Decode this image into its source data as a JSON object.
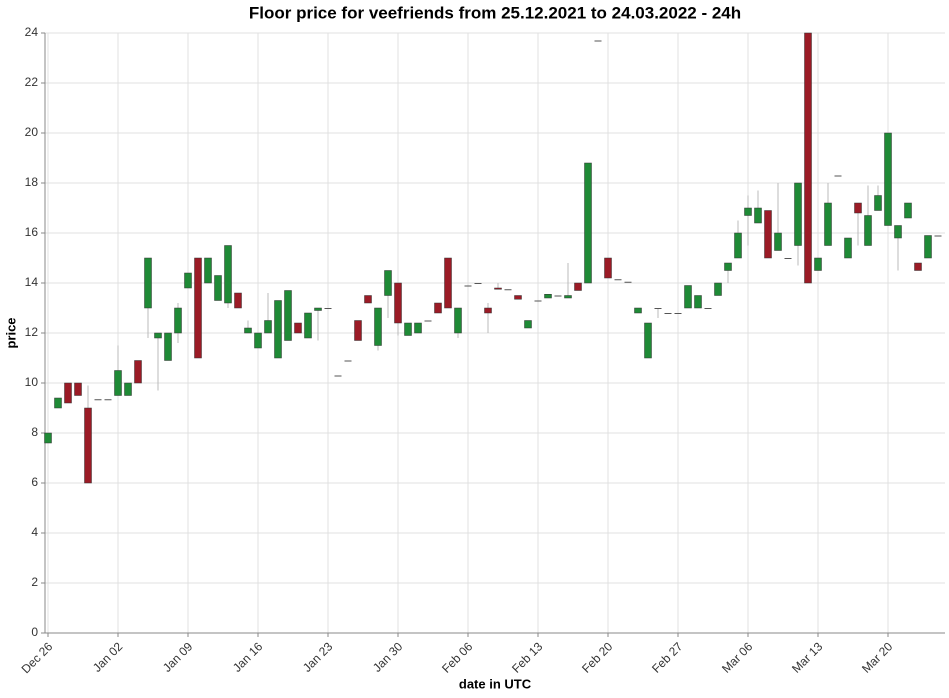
{
  "chart_data": {
    "type": "candlestick",
    "title": "Floor price for veefriends from 25.12.2021 to 24.03.2022  - 24h",
    "x_label": "date in UTC",
    "y_label": "price",
    "ylim": [
      0,
      24
    ],
    "yticks": [
      0,
      2,
      4,
      6,
      8,
      10,
      12,
      14,
      16,
      18,
      20,
      22,
      24
    ],
    "grid": true,
    "up_color": "#1f8a36",
    "down_color": "#9b1b26",
    "flat_color": "#555555",
    "wick_color": "#bbbbbb",
    "x": [
      "Dec 26",
      "Dec 27",
      "Dec 28",
      "Dec 29",
      "Dec 30",
      "Dec 31",
      "Jan 01",
      "Jan 02",
      "Jan 03",
      "Jan 04",
      "Jan 05",
      "Jan 06",
      "Jan 07",
      "Jan 08",
      "Jan 09",
      "Jan 10",
      "Jan 11",
      "Jan 12",
      "Jan 13",
      "Jan 14",
      "Jan 15",
      "Jan 16",
      "Jan 17",
      "Jan 18",
      "Jan 19",
      "Jan 20",
      "Jan 21",
      "Jan 22",
      "Jan 23",
      "Jan 24",
      "Jan 25",
      "Jan 26",
      "Jan 27",
      "Jan 28",
      "Jan 29",
      "Jan 30",
      "Jan 31",
      "Feb 01",
      "Feb 02",
      "Feb 03",
      "Feb 04",
      "Feb 05",
      "Feb 06",
      "Feb 07",
      "Feb 08",
      "Feb 09",
      "Feb 10",
      "Feb 11",
      "Feb 12",
      "Feb 13",
      "Feb 14",
      "Feb 15",
      "Feb 16",
      "Feb 17",
      "Feb 18",
      "Feb 19",
      "Feb 20",
      "Feb 21",
      "Feb 22",
      "Feb 23",
      "Feb 24",
      "Feb 25",
      "Feb 26",
      "Feb 27",
      "Feb 28",
      "Mar 01",
      "Mar 02",
      "Mar 03",
      "Mar 04",
      "Mar 05",
      "Mar 06",
      "Mar 07",
      "Mar 08",
      "Mar 09",
      "Mar 10",
      "Mar 11",
      "Mar 12",
      "Mar 13",
      "Mar 14",
      "Mar 15",
      "Mar 16",
      "Mar 17",
      "Mar 18",
      "Mar 19",
      "Mar 20",
      "Mar 21",
      "Mar 22",
      "Mar 23",
      "Mar 24",
      "Mar 25"
    ],
    "xticks": [
      "Dec 26",
      "Jan 02",
      "Jan 09",
      "Jan 16",
      "Jan 23",
      "Jan 30",
      "Feb 06",
      "Feb 13",
      "Feb 20",
      "Feb 27",
      "Mar 06",
      "Mar 13",
      "Mar 20"
    ],
    "open": [
      7.6,
      9.0,
      10.0,
      10.0,
      9.0,
      9.35,
      9.35,
      9.5,
      9.5,
      10.9,
      13.0,
      11.8,
      10.9,
      12.0,
      13.8,
      15.0,
      14.0,
      13.3,
      13.2,
      13.6,
      12.0,
      11.4,
      12.0,
      11.0,
      11.7,
      12.4,
      11.8,
      12.9,
      13.0,
      10.3,
      10.9,
      12.5,
      13.5,
      11.5,
      13.5,
      14.0,
      11.9,
      12.0,
      12.5,
      13.2,
      15.0,
      12.0,
      13.9,
      14.0,
      13.0,
      13.8,
      13.75,
      13.5,
      12.2,
      13.3,
      13.4,
      13.5,
      13.4,
      14.0,
      14.0,
      23.7,
      15.0,
      14.15,
      14.05,
      12.8,
      11.0,
      13.0,
      12.8,
      12.8,
      13.0,
      13.0,
      13.0,
      13.5,
      14.5,
      15.0,
      16.7,
      16.4,
      16.9,
      15.3,
      15.0,
      15.5,
      24.0,
      14.5,
      15.5,
      18.3,
      15.0,
      17.2,
      15.5,
      16.9,
      16.3,
      15.8,
      16.6,
      14.8,
      15.0,
      15.9
    ],
    "high": [
      8.0,
      9.4,
      10.0,
      10.0,
      9.9,
      9.35,
      9.35,
      11.5,
      10.0,
      10.9,
      15.0,
      12.0,
      12.0,
      13.2,
      14.4,
      15.0,
      15.0,
      14.3,
      15.5,
      13.6,
      12.5,
      12.0,
      13.6,
      13.3,
      13.7,
      12.4,
      12.8,
      13.0,
      13.0,
      10.3,
      10.9,
      12.5,
      13.5,
      13.0,
      14.5,
      14.0,
      12.4,
      12.4,
      12.5,
      13.2,
      15.0,
      13.0,
      13.9,
      14.0,
      13.2,
      14.0,
      13.75,
      13.5,
      12.5,
      13.3,
      13.55,
      13.5,
      14.8,
      14.0,
      18.8,
      23.7,
      15.0,
      14.15,
      14.05,
      13.0,
      12.4,
      13.0,
      12.8,
      12.8,
      13.9,
      13.5,
      13.0,
      14.0,
      14.8,
      16.5,
      17.5,
      17.7,
      16.9,
      18.0,
      15.0,
      18.0,
      24.0,
      15.0,
      18.0,
      18.3,
      15.8,
      17.2,
      17.9,
      17.9,
      20.0,
      16.3,
      17.2,
      14.8,
      15.9,
      15.9
    ],
    "low": [
      7.6,
      9.0,
      9.2,
      9.5,
      6.0,
      9.35,
      9.35,
      9.5,
      9.5,
      10.0,
      11.8,
      9.7,
      10.9,
      11.6,
      13.8,
      11.0,
      14.0,
      13.3,
      13.0,
      13.0,
      12.0,
      11.4,
      12.0,
      11.0,
      11.7,
      12.0,
      11.8,
      11.7,
      13.0,
      10.3,
      10.9,
      11.7,
      13.2,
      11.3,
      12.6,
      11.9,
      11.9,
      12.0,
      12.5,
      12.8,
      13.0,
      11.8,
      13.9,
      14.0,
      12.0,
      13.75,
      13.75,
      13.35,
      12.2,
      13.3,
      13.4,
      13.5,
      13.4,
      13.7,
      14.0,
      23.7,
      14.2,
      14.15,
      14.05,
      12.8,
      11.0,
      12.6,
      12.8,
      12.8,
      13.0,
      13.0,
      13.0,
      13.5,
      14.0,
      15.0,
      15.5,
      16.4,
      15.0,
      15.3,
      15.0,
      14.7,
      14.0,
      14.5,
      15.5,
      18.3,
      15.0,
      15.5,
      15.5,
      16.9,
      16.3,
      14.5,
      16.6,
      14.5,
      15.0,
      15.9
    ],
    "close": [
      8.0,
      9.4,
      9.2,
      9.5,
      6.0,
      9.35,
      9.35,
      10.5,
      10.0,
      10.0,
      15.0,
      12.0,
      12.0,
      13.0,
      14.4,
      11.0,
      15.0,
      14.3,
      15.5,
      13.0,
      12.2,
      12.0,
      12.5,
      13.3,
      13.7,
      12.0,
      12.8,
      13.0,
      13.0,
      10.3,
      10.9,
      11.7,
      13.2,
      13.0,
      14.5,
      12.4,
      12.4,
      12.4,
      12.5,
      12.8,
      13.0,
      13.0,
      13.9,
      14.0,
      12.8,
      13.75,
      13.75,
      13.35,
      12.5,
      13.3,
      13.55,
      13.5,
      13.5,
      13.7,
      18.8,
      23.7,
      14.2,
      14.15,
      14.05,
      13.0,
      12.4,
      13.0,
      12.8,
      12.8,
      13.9,
      13.5,
      13.0,
      14.0,
      14.8,
      16.0,
      17.0,
      17.0,
      15.0,
      16.0,
      15.0,
      18.0,
      14.0,
      15.0,
      17.2,
      18.3,
      15.8,
      16.8,
      16.7,
      17.5,
      20.0,
      16.3,
      17.2,
      14.5,
      15.9,
      15.9
    ]
  }
}
